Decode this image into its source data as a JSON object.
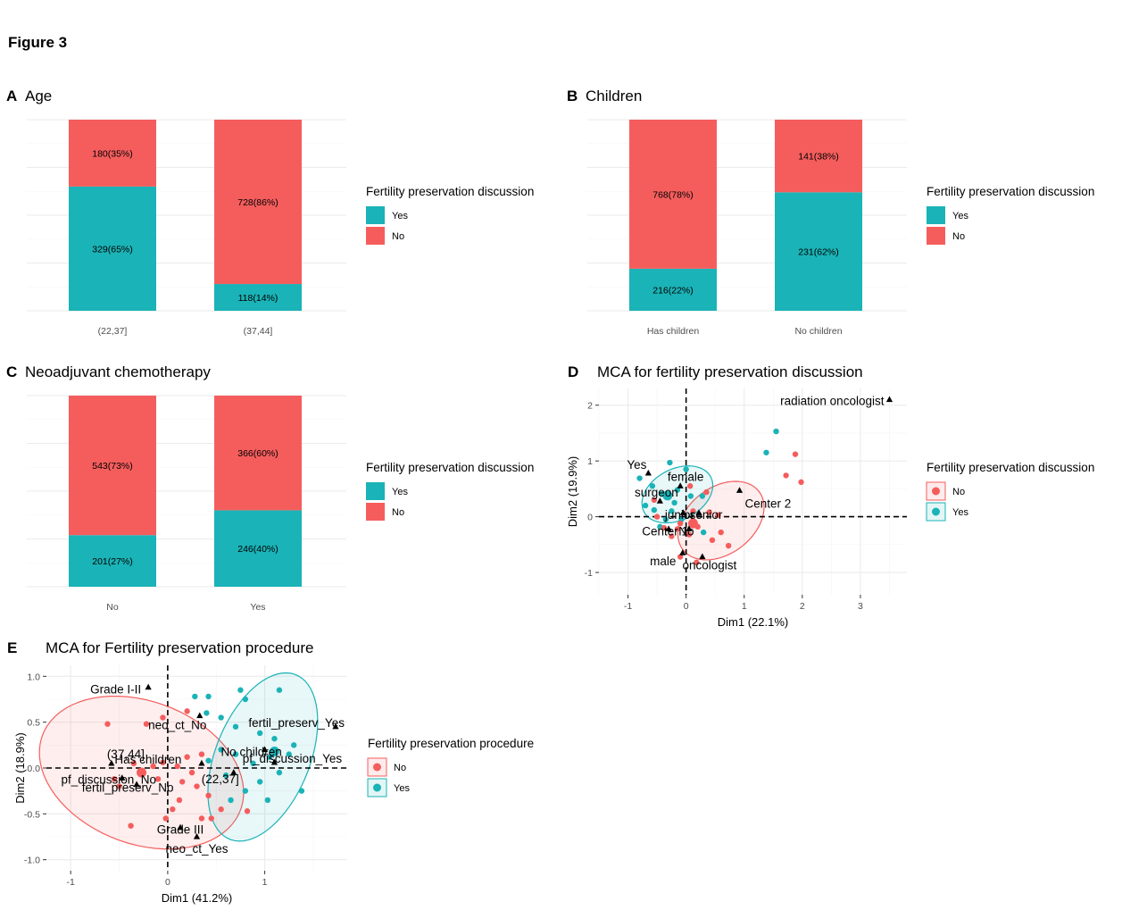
{
  "figure_title": "Figure 3",
  "colors": {
    "yes": "#1AB3B7",
    "no": "#F55D5D",
    "grid": "#EBEBEB",
    "axis_text": "#4D4D4D"
  },
  "chart_data": [
    {
      "panel": "A",
      "title": "Age",
      "type": "bar",
      "stacked": true,
      "normalized": true,
      "categories": [
        "(22,37]",
        "(37,44]"
      ],
      "series": [
        {
          "name": "Yes",
          "values": [
            329,
            118
          ],
          "labels": [
            "329(65%)",
            "118(14%)"
          ],
          "fractions": [
            0.65,
            0.14
          ]
        },
        {
          "name": "No",
          "values": [
            180,
            728
          ],
          "labels": [
            "180(35%)",
            "728(86%)"
          ],
          "fractions": [
            0.35,
            0.86
          ]
        }
      ],
      "legend": {
        "title": "Fertility preservation discussion",
        "items": [
          "Yes",
          "No"
        ],
        "position": "right"
      },
      "grid": true
    },
    {
      "panel": "B",
      "title": "Children",
      "type": "bar",
      "stacked": true,
      "normalized": true,
      "categories": [
        "Has children",
        "No children"
      ],
      "series": [
        {
          "name": "Yes",
          "values": [
            216,
            231
          ],
          "labels": [
            "216(22%)",
            "231(62%)"
          ],
          "fractions": [
            0.22,
            0.62
          ]
        },
        {
          "name": "No",
          "values": [
            768,
            141
          ],
          "labels": [
            "768(78%)",
            "141(38%)"
          ],
          "fractions": [
            0.78,
            0.38
          ]
        }
      ],
      "legend": {
        "title": "Fertility preservation discussion",
        "items": [
          "Yes",
          "No"
        ],
        "position": "right"
      },
      "grid": true
    },
    {
      "panel": "C",
      "title": "Neoadjuvant chemotherapy",
      "type": "bar",
      "stacked": true,
      "normalized": true,
      "categories": [
        "No",
        "Yes"
      ],
      "series": [
        {
          "name": "Yes",
          "values": [
            201,
            246
          ],
          "labels": [
            "201(27%)",
            "246(40%)"
          ],
          "fractions": [
            0.27,
            0.4
          ]
        },
        {
          "name": "No",
          "values": [
            543,
            366
          ],
          "labels": [
            "543(73%)",
            "366(60%)"
          ],
          "fractions": [
            0.73,
            0.6
          ]
        }
      ],
      "legend": {
        "title": "Fertility preservation discussion",
        "items": [
          "Yes",
          "No"
        ],
        "position": "right"
      },
      "grid": true
    },
    {
      "panel": "D",
      "title": "MCA for fertility preservation discussion",
      "type": "scatter",
      "xlabel": "Dim1 (22.1%)",
      "ylabel": "Dim2 (19.9%)",
      "xlim": [
        -1.5,
        3.8
      ],
      "ylim": [
        -1.4,
        2.3
      ],
      "xticks": [
        -1,
        0,
        1,
        2,
        3
      ],
      "yticks": [
        -1,
        0,
        1,
        2
      ],
      "legend": {
        "title": "Fertility preservation discussion",
        "items": [
          "No",
          "Yes"
        ],
        "position": "right"
      },
      "category_points": [
        {
          "label": "radiation oncologist",
          "x": 3.5,
          "y": 2.1
        },
        {
          "label": "Yes",
          "x": -0.65,
          "y": 0.78
        },
        {
          "label": "female",
          "x": -0.1,
          "y": 0.55
        },
        {
          "label": "surgeon",
          "x": -0.45,
          "y": 0.28
        },
        {
          "label": "Center 2",
          "x": 0.92,
          "y": 0.47
        },
        {
          "label": "junior",
          "x": -0.05,
          "y": 0.07
        },
        {
          "label": "senior",
          "x": 0.22,
          "y": 0.07
        },
        {
          "label": "Center 1",
          "x": -0.3,
          "y": -0.22
        },
        {
          "label": "No",
          "x": 0.05,
          "y": -0.22
        },
        {
          "label": "male",
          "x": -0.06,
          "y": -0.65
        },
        {
          "label": "oncologist",
          "x": 0.28,
          "y": -0.72
        }
      ],
      "individuals": [
        {
          "group": "Yes",
          "x": 1.55,
          "y": 1.53
        },
        {
          "group": "Yes",
          "x": 1.38,
          "y": 1.15
        },
        {
          "group": "No",
          "x": 1.88,
          "y": 1.12
        },
        {
          "group": "No",
          "x": 1.72,
          "y": 0.74
        },
        {
          "group": "No",
          "x": 1.98,
          "y": 0.62
        },
        {
          "group": "Yes",
          "x": -0.8,
          "y": 0.69
        },
        {
          "group": "Yes",
          "x": -0.28,
          "y": 0.97
        },
        {
          "group": "Yes",
          "x": 0.0,
          "y": 0.85
        },
        {
          "group": "Yes",
          "x": -0.58,
          "y": 0.55
        },
        {
          "group": "Yes",
          "x": -0.42,
          "y": 0.41
        },
        {
          "group": "Yes",
          "x": -0.15,
          "y": 0.48
        },
        {
          "group": "Yes",
          "x": -0.7,
          "y": 0.2
        },
        {
          "group": "Yes",
          "x": -0.55,
          "y": 0.12
        },
        {
          "group": "Yes",
          "x": -0.2,
          "y": 0.25
        },
        {
          "group": "Yes",
          "x": 0.08,
          "y": 0.37
        },
        {
          "group": "Yes",
          "x": 0.28,
          "y": 0.37
        },
        {
          "group": "Yes",
          "x": -0.35,
          "y": -0.05
        },
        {
          "group": "Yes",
          "x": -0.08,
          "y": -0.05
        },
        {
          "group": "Yes",
          "x": 0.15,
          "y": -0.12
        },
        {
          "group": "Yes",
          "x": -0.45,
          "y": -0.18
        },
        {
          "group": "Yes",
          "x": 0.3,
          "y": -0.28
        },
        {
          "group": "Yes",
          "x": -0.25,
          "y": 0.1
        },
        {
          "group": "No",
          "x": 0.07,
          "y": 0.55
        },
        {
          "group": "No",
          "x": 0.35,
          "y": 0.44
        },
        {
          "group": "No",
          "x": -0.55,
          "y": 0.3
        },
        {
          "group": "No",
          "x": 0.12,
          "y": 0.1
        },
        {
          "group": "No",
          "x": 0.4,
          "y": 0.08
        },
        {
          "group": "No",
          "x": 0.55,
          "y": 0.03
        },
        {
          "group": "No",
          "x": -0.1,
          "y": -0.12
        },
        {
          "group": "No",
          "x": -0.38,
          "y": -0.2
        },
        {
          "group": "No",
          "x": -0.25,
          "y": -0.35
        },
        {
          "group": "No",
          "x": 0.05,
          "y": -0.32
        },
        {
          "group": "No",
          "x": 0.45,
          "y": -0.42
        },
        {
          "group": "No",
          "x": 0.73,
          "y": -0.52
        },
        {
          "group": "No",
          "x": -0.1,
          "y": -0.72
        },
        {
          "group": "No",
          "x": 0.18,
          "y": -0.82
        },
        {
          "group": "No",
          "x": -0.15,
          "y": -0.22
        },
        {
          "group": "No",
          "x": 0.2,
          "y": -0.18
        },
        {
          "group": "No",
          "x": -0.5,
          "y": 0.0
        },
        {
          "group": "No",
          "x": 0.6,
          "y": -0.28
        }
      ],
      "centroids": [
        {
          "group": "No",
          "x": 0.12,
          "y": -0.12
        },
        {
          "group": "Yes",
          "x": -0.32,
          "y": 0.38
        }
      ],
      "ellipses": [
        {
          "group": "No",
          "cx": 0.6,
          "cy": -0.07,
          "rx": 1.23,
          "ry": 0.82,
          "angle": 30
        },
        {
          "group": "Yes",
          "cx": -0.15,
          "cy": 0.4,
          "rx": 0.98,
          "ry": 0.62,
          "angle": 22
        }
      ]
    },
    {
      "panel": "E",
      "title": "MCA for Fertility preservation procedure",
      "type": "scatter",
      "xlabel": "Dim1 (41.2%)",
      "ylabel": "Dim2 (18.9%)",
      "xlim": [
        -1.25,
        1.85
      ],
      "ylim": [
        -1.12,
        1.12
      ],
      "xticks": [
        -1,
        0,
        1
      ],
      "yticks": [
        -1.0,
        -0.5,
        0.0,
        0.5,
        1.0
      ],
      "legend": {
        "title": "Fertility preservation procedure",
        "items": [
          "No",
          "Yes"
        ],
        "position": "right"
      },
      "category_points": [
        {
          "label": "Grade I-II",
          "x": -0.2,
          "y": 0.88
        },
        {
          "label": "neo_ct_No",
          "x": 0.33,
          "y": 0.57
        },
        {
          "label": "fertil_preserv_Yes",
          "x": 1.73,
          "y": 0.45
        },
        {
          "label": "No children",
          "x": 1.0,
          "y": 0.2
        },
        {
          "label": "(37,44]",
          "x": -0.58,
          "y": 0.05
        },
        {
          "label": "Has children",
          "x": 0.35,
          "y": 0.05
        },
        {
          "label": "pf_discussion_Yes",
          "x": 1.1,
          "y": 0.06
        },
        {
          "label": "pf_discussion_No",
          "x": -0.47,
          "y": -0.11
        },
        {
          "label": "(22,37]",
          "x": 0.68,
          "y": -0.05
        },
        {
          "label": "fertil_preserv_No",
          "x": -0.32,
          "y": -0.18
        },
        {
          "label": "Grade III",
          "x": 0.13,
          "y": -0.65
        },
        {
          "label": "neo_ct_Yes",
          "x": 0.3,
          "y": -0.75
        }
      ],
      "individuals": [
        {
          "group": "Yes",
          "x": 0.28,
          "y": 0.78
        },
        {
          "group": "Yes",
          "x": 0.42,
          "y": 0.78
        },
        {
          "group": "Yes",
          "x": 0.75,
          "y": 0.85
        },
        {
          "group": "Yes",
          "x": 0.8,
          "y": 0.75
        },
        {
          "group": "Yes",
          "x": 1.15,
          "y": 0.85
        },
        {
          "group": "Yes",
          "x": 0.4,
          "y": 0.6
        },
        {
          "group": "Yes",
          "x": 0.55,
          "y": 0.55
        },
        {
          "group": "Yes",
          "x": 0.7,
          "y": 0.45
        },
        {
          "group": "Yes",
          "x": 0.95,
          "y": 0.38
        },
        {
          "group": "Yes",
          "x": 1.1,
          "y": 0.32
        },
        {
          "group": "Yes",
          "x": 1.3,
          "y": 0.25
        },
        {
          "group": "Yes",
          "x": 1.25,
          "y": 0.15
        },
        {
          "group": "Yes",
          "x": 0.55,
          "y": 0.2
        },
        {
          "group": "Yes",
          "x": 0.7,
          "y": 0.15
        },
        {
          "group": "Yes",
          "x": 0.88,
          "y": 0.05
        },
        {
          "group": "Yes",
          "x": 1.05,
          "y": 0.12
        },
        {
          "group": "Yes",
          "x": 0.42,
          "y": 0.08
        },
        {
          "group": "Yes",
          "x": 0.6,
          "y": -0.08
        },
        {
          "group": "Yes",
          "x": 0.95,
          "y": -0.15
        },
        {
          "group": "Yes",
          "x": 1.38,
          "y": -0.25
        },
        {
          "group": "Yes",
          "x": 0.65,
          "y": -0.35
        },
        {
          "group": "Yes",
          "x": 1.03,
          "y": -0.35
        },
        {
          "group": "Yes",
          "x": 1.15,
          "y": -0.05
        },
        {
          "group": "Yes",
          "x": 0.8,
          "y": -0.25
        },
        {
          "group": "No",
          "x": -0.62,
          "y": 0.48
        },
        {
          "group": "No",
          "x": -0.22,
          "y": 0.48
        },
        {
          "group": "No",
          "x": 0.2,
          "y": 0.62
        },
        {
          "group": "No",
          "x": -0.05,
          "y": 0.55
        },
        {
          "group": "No",
          "x": -0.35,
          "y": 0.05
        },
        {
          "group": "No",
          "x": -0.15,
          "y": 0.02
        },
        {
          "group": "No",
          "x": -0.05,
          "y": 0.06
        },
        {
          "group": "No",
          "x": 0.1,
          "y": 0.02
        },
        {
          "group": "No",
          "x": 0.2,
          "y": 0.12
        },
        {
          "group": "No",
          "x": 0.35,
          "y": 0.15
        },
        {
          "group": "No",
          "x": -0.25,
          "y": -0.05
        },
        {
          "group": "No",
          "x": -0.1,
          "y": -0.12
        },
        {
          "group": "No",
          "x": 0.15,
          "y": -0.15
        },
        {
          "group": "No",
          "x": 0.3,
          "y": -0.2
        },
        {
          "group": "No",
          "x": -0.5,
          "y": -0.2
        },
        {
          "group": "No",
          "x": 0.42,
          "y": -0.3
        },
        {
          "group": "No",
          "x": 0.05,
          "y": -0.45
        },
        {
          "group": "No",
          "x": 0.45,
          "y": -0.55
        },
        {
          "group": "No",
          "x": 0.35,
          "y": -0.55
        },
        {
          "group": "No",
          "x": -0.02,
          "y": -0.55
        },
        {
          "group": "No",
          "x": -0.38,
          "y": -0.63
        },
        {
          "group": "No",
          "x": -0.55,
          "y": -0.12
        },
        {
          "group": "No",
          "x": 0.25,
          "y": -0.05
        },
        {
          "group": "No",
          "x": 0.55,
          "y": -0.45
        },
        {
          "group": "No",
          "x": 0.82,
          "y": -0.47
        },
        {
          "group": "No",
          "x": 0.12,
          "y": -0.35
        }
      ],
      "centroids": [
        {
          "group": "No",
          "x": -0.27,
          "y": -0.05
        },
        {
          "group": "Yes",
          "x": 1.1,
          "y": 0.18
        }
      ],
      "ellipses": [
        {
          "group": "No",
          "cx": -0.27,
          "cy": -0.05,
          "rx": 1.1,
          "ry": 0.77,
          "angle": -24
        },
        {
          "group": "Yes",
          "cx": 0.98,
          "cy": 0.12,
          "rx": 0.96,
          "ry": 0.49,
          "angle": 70
        }
      ]
    }
  ]
}
